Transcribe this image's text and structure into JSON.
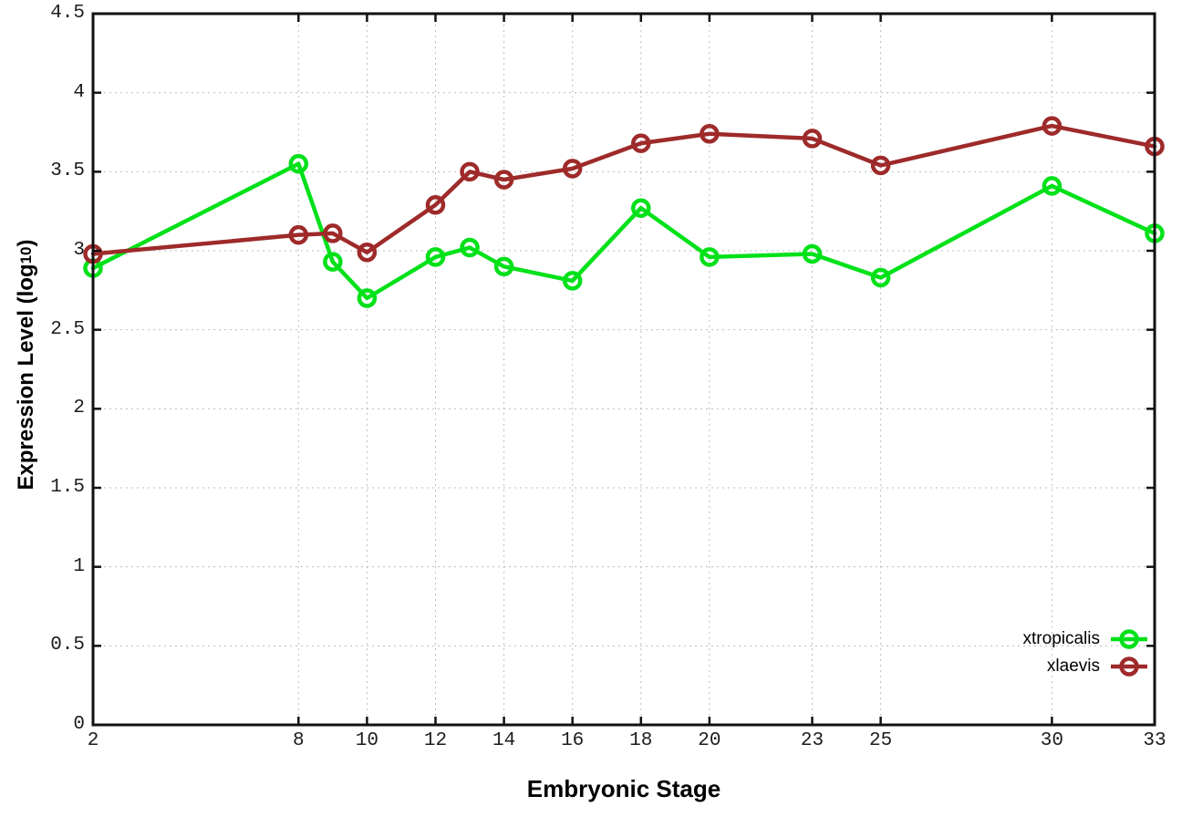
{
  "figure": {
    "background": "#ffffff",
    "border_color": "#111111",
    "grid_color": "#bdbdbd",
    "tick_label_color": "#1c1c1c"
  },
  "chart_data": {
    "type": "line",
    "title": "",
    "xlabel": "Embryonic Stage",
    "ylabel": {
      "prefix": "Expression Level (log",
      "sub": "10",
      "suffix": ")"
    },
    "xlim": [
      2,
      33
    ],
    "ylim": [
      0,
      4.5
    ],
    "xticks": [
      2,
      8,
      10,
      12,
      14,
      16,
      18,
      20,
      23,
      25,
      30,
      33
    ],
    "yticks": [
      0,
      0.5,
      1,
      1.5,
      2,
      2.5,
      3,
      3.5,
      4,
      4.5
    ],
    "ytick_labels": [
      "0",
      "0.5",
      "1",
      "1.5",
      "2",
      "2.5",
      "3",
      "3.5",
      "4",
      "4.5"
    ],
    "grid": true,
    "legend_position": "bottom-right",
    "x": [
      2,
      8,
      9,
      10,
      12,
      13,
      14,
      16,
      18,
      20,
      23,
      25,
      30,
      33
    ],
    "series": [
      {
        "name": "xtropicalis",
        "color": "#00e119",
        "values": [
          2.89,
          3.55,
          2.93,
          2.7,
          2.96,
          3.02,
          2.9,
          2.81,
          3.27,
          2.96,
          2.98,
          2.83,
          3.41,
          3.11
        ]
      },
      {
        "name": "xlaevis",
        "color": "#9e2a2a",
        "values": [
          2.98,
          3.1,
          3.11,
          2.99,
          3.29,
          3.5,
          3.45,
          3.52,
          3.68,
          3.74,
          3.71,
          3.54,
          3.79,
          3.66
        ]
      }
    ]
  }
}
